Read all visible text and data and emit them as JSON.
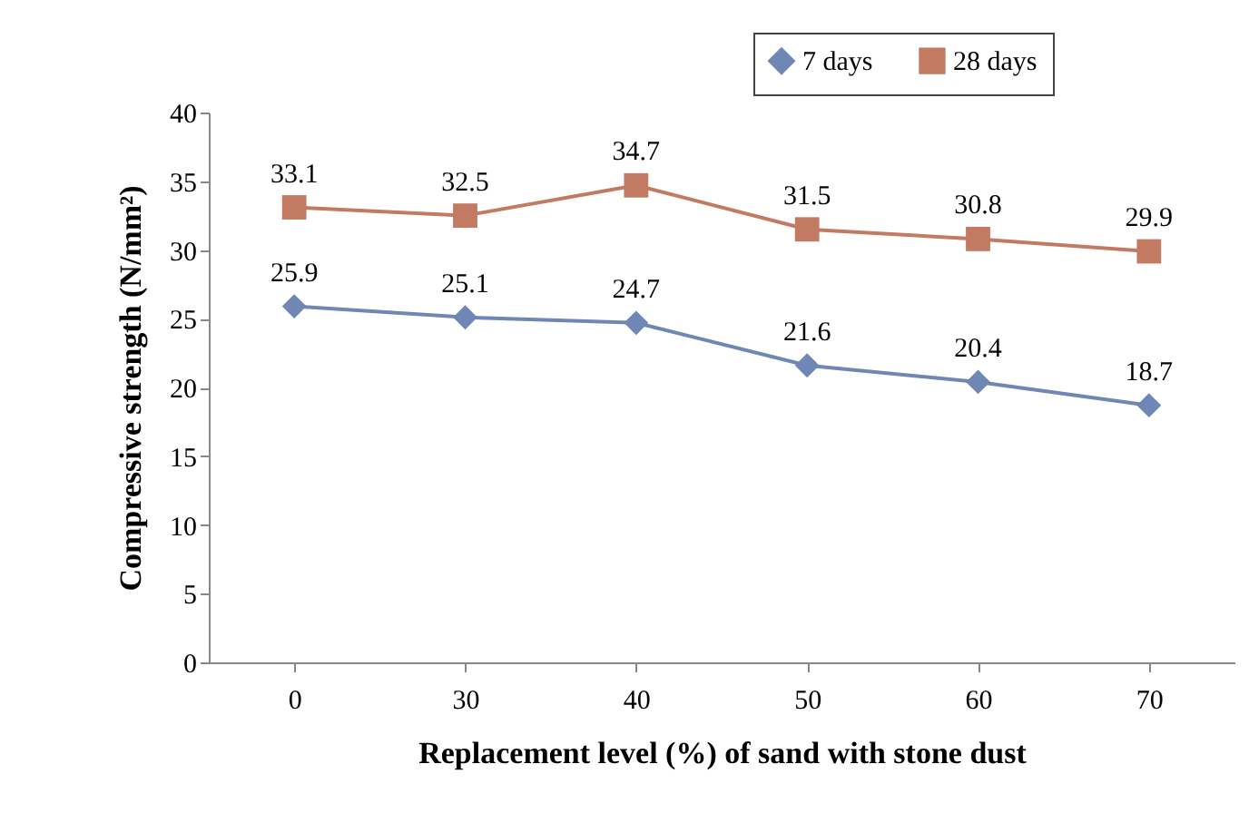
{
  "chart_data": {
    "type": "line",
    "xlabel": "Replacement level (%) of sand with stone dust",
    "ylabel": "Compressive strength (N/mm²)",
    "categories": [
      "0",
      "30",
      "40",
      "50",
      "60",
      "70"
    ],
    "series": [
      {
        "name": "7 days",
        "color": "#6f87b5",
        "marker": "diamond",
        "values": [
          25.9,
          25.1,
          24.7,
          21.6,
          20.4,
          18.7
        ]
      },
      {
        "name": "28 days",
        "color": "#c27a62",
        "marker": "square",
        "values": [
          33.1,
          32.5,
          34.7,
          31.5,
          30.8,
          29.9
        ]
      }
    ],
    "ylim": [
      0,
      40
    ],
    "yticks": [
      0,
      5,
      10,
      15,
      20,
      25,
      30,
      35,
      40
    ],
    "grid": false,
    "legend": "top right",
    "data_labels": true,
    "line_style": "solid"
  }
}
